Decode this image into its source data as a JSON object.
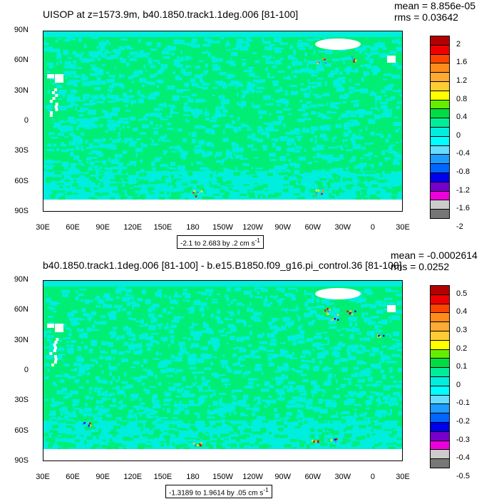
{
  "chart_data": [
    {
      "type": "heatmap",
      "title": "UISOP at z=1573.9m, b40.1850.track1.1deg.006 [81-100]",
      "stats": {
        "mean": "mean = 8.856e-05",
        "rms": "rms = 0.03642"
      },
      "y_ticks": [
        "90N",
        "60N",
        "30N",
        "0",
        "30S",
        "60S",
        "90S"
      ],
      "x_ticks": [
        "30E",
        "60E",
        "90E",
        "120E",
        "150E",
        "180",
        "150W",
        "120W",
        "90W",
        "60W",
        "30W",
        "0",
        "30E"
      ],
      "range_label": "-2.1 to 2.683 by .2 cm s",
      "range_unit_sup": "-1",
      "colorbar": {
        "levels": [
          "2",
          "1.6",
          "1.2",
          "0.8",
          "0.4",
          "0",
          "-0.4",
          "-0.8",
          "-1.2",
          "-1.6",
          "-2"
        ],
        "colors": [
          "#b40000",
          "#ee0000",
          "#ff4400",
          "#ff8c1a",
          "#ffaa33",
          "#ffcc33",
          "#ffff00",
          "#66ee00",
          "#00dd44",
          "#00ee99",
          "#00eedd",
          "#00ffff",
          "#66ddff",
          "#1e9cff",
          "#0066ff",
          "#0000ee",
          "#7700cc",
          "#ee00dd",
          "#cccccc",
          "#777777"
        ]
      }
    },
    {
      "type": "heatmap",
      "title": "b40.1850.track1.1deg.006 [81-100] - b.e15.B1850.f09_g16.pi_control.36 [81-100]",
      "stats": {
        "mean": "mean = -0.0002614",
        "rms": "rms = 0.0252"
      },
      "y_ticks": [
        "90N",
        "60N",
        "30N",
        "0",
        "30S",
        "60S",
        "90S"
      ],
      "x_ticks": [
        "30E",
        "60E",
        "90E",
        "120E",
        "150E",
        "180",
        "150W",
        "120W",
        "90W",
        "60W",
        "30W",
        "0",
        "30E"
      ],
      "range_label": "-1.3189 to 1.9614 by .05 cm s",
      "range_unit_sup": "-1",
      "colorbar": {
        "levels": [
          "0.5",
          "0.4",
          "0.3",
          "0.2",
          "0.1",
          "0",
          "-0.1",
          "-0.2",
          "-0.3",
          "-0.4",
          "-0.5"
        ],
        "colors": [
          "#b40000",
          "#ee0000",
          "#ff4400",
          "#ff8c1a",
          "#ffaa33",
          "#ffcc33",
          "#ffff00",
          "#66ee00",
          "#00dd44",
          "#00ee99",
          "#00eedd",
          "#00ffff",
          "#66ddff",
          "#1e9cff",
          "#0066ff",
          "#0000ee",
          "#7700cc",
          "#ee00dd",
          "#cccccc",
          "#777777"
        ]
      }
    }
  ]
}
